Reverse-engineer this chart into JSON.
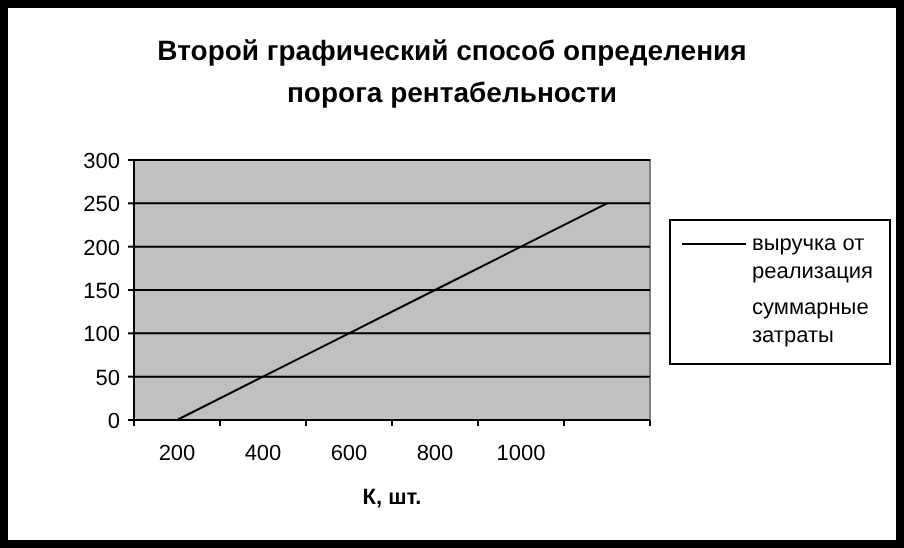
{
  "chart_data": {
    "type": "line",
    "title": "Второй графический способ определения порога рентабельности",
    "xlabel": "К, шт.",
    "categories": [
      "200",
      "400",
      "600",
      "800",
      "1000",
      null
    ],
    "series": [
      {
        "name": "выручка от реализация",
        "color": "#000000",
        "values": [
          0,
          50,
          100,
          150,
          200,
          250
        ]
      },
      {
        "name": "суммарные затраты",
        "color": "#000000",
        "values": [
          null,
          null,
          null,
          null,
          null,
          null
        ]
      }
    ],
    "ylim": [
      0,
      300
    ],
    "yticks": [
      0,
      50,
      100,
      150,
      200,
      250,
      300
    ],
    "grid": "y",
    "legend": "right",
    "marker": "none",
    "line_style": "solid"
  }
}
